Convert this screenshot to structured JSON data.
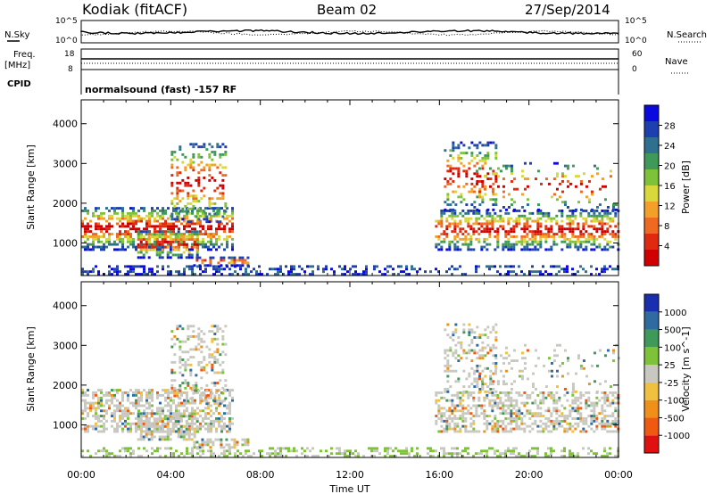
{
  "header": {
    "station": "Kodiak (fitACF)",
    "beam": "Beam 02",
    "date": "27/Sep/2014"
  },
  "top_panels": {
    "nsky_label": "N.Sky",
    "nsky_ticks": [
      "10^5",
      "10^0"
    ],
    "nsearch_label": "N.Search",
    "nsearch_ticks": [
      "10^5",
      "10^0"
    ],
    "freq_label_1": "Freq.",
    "freq_label_2": "[MHz]",
    "freq_ticks": [
      "18",
      "8"
    ],
    "nave_label": "Nave",
    "nave_ticks": [
      "60",
      "0"
    ],
    "cpid_label": "CPID",
    "cpid_text": "normalsound (fast) -157 RF"
  },
  "chart_data": [
    {
      "type": "heatmap",
      "name": "power-panel",
      "ylabel": "Slant Range [km]",
      "xlabel": "",
      "yticks": [
        "1000",
        "2000",
        "3000",
        "4000"
      ],
      "ylim": [
        180,
        4600
      ],
      "xlim_hours": [
        0,
        24
      ],
      "colorbar": {
        "label": "Power [dB]",
        "ticks": [
          "28",
          "24",
          "20",
          "16",
          "12",
          "8",
          "4"
        ],
        "colors": [
          "#0a0ae0",
          "#1e3fb0",
          "#2f6f8f",
          "#3f9a5a",
          "#7ec23a",
          "#d8d83a",
          "#f2a02a",
          "#ef6a20",
          "#e02a10",
          "#d00000"
        ]
      }
    },
    {
      "type": "heatmap",
      "name": "velocity-panel",
      "ylabel": "Slant Range [km]",
      "xlabel": "Time UT",
      "yticks": [
        "1000",
        "2000",
        "3000",
        "4000"
      ],
      "ylim": [
        180,
        4600
      ],
      "xlim_hours": [
        0,
        24
      ],
      "xticks": [
        "00:00",
        "04:00",
        "08:00",
        "12:00",
        "16:00",
        "20:00",
        "00:00"
      ],
      "colorbar": {
        "label": "Velocity [m s^-1]",
        "ticks": [
          "1000",
          "500",
          "100",
          "25",
          "-25",
          "-100",
          "-500",
          "-1000"
        ],
        "colors": [
          "#1a2fb0",
          "#2f6aa0",
          "#3f9a5a",
          "#7ec23a",
          "#c8c8c0",
          "#f0c040",
          "#f0901a",
          "#ef5a10",
          "#e01010"
        ]
      }
    }
  ]
}
